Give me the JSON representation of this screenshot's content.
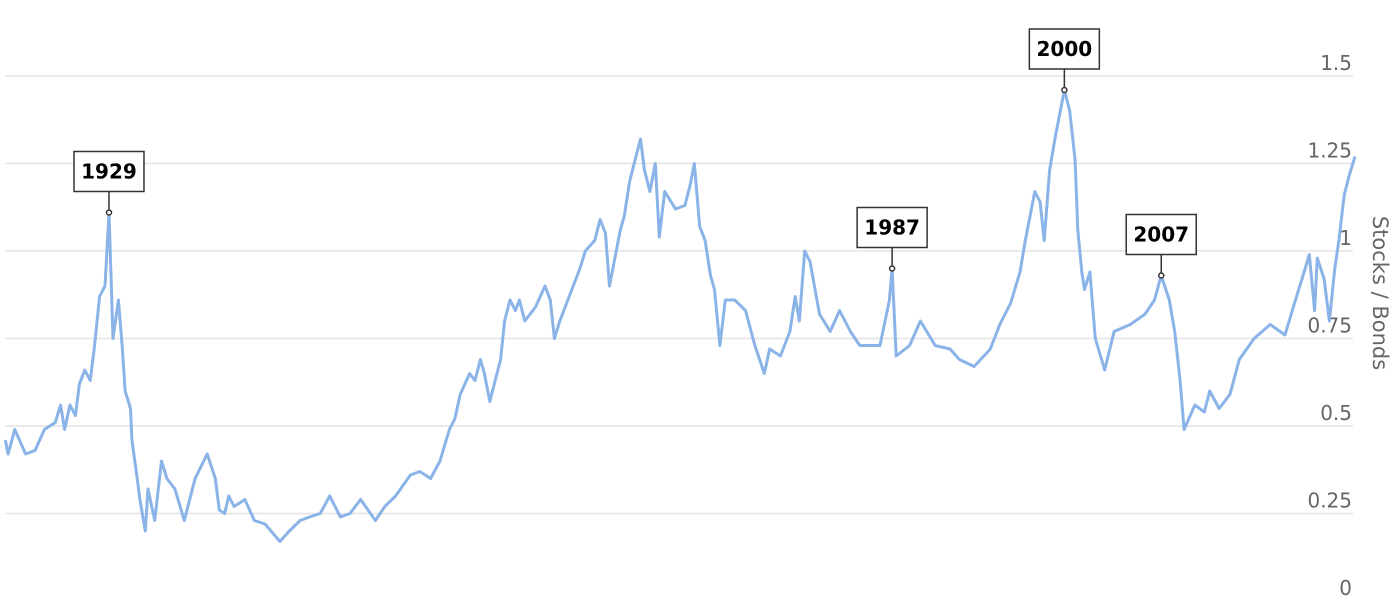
{
  "chart_data": {
    "type": "line",
    "title": "",
    "xlabel": "",
    "ylabel": "Stocks / Bonds",
    "xlim": [
      1920.9,
      2021.6
    ],
    "ylim": [
      0,
      1.5
    ],
    "yticks": [
      0,
      0.25,
      0.5,
      0.75,
      1,
      1.25,
      1.5
    ],
    "ytick_labels": [
      "0",
      "0.25",
      "0.5",
      "0.75",
      "1",
      "1.25",
      "1.5"
    ],
    "y_axis_side": "right",
    "grid": "horizontal",
    "line_color": "#8ab4e8",
    "series": [
      {
        "points": [
          [
            1921.3,
            0.46
          ],
          [
            1921.5,
            0.42
          ],
          [
            1922.0,
            0.49
          ],
          [
            1922.8,
            0.42
          ],
          [
            1923.5,
            0.43
          ],
          [
            1924.2,
            0.49
          ],
          [
            1925.0,
            0.51
          ],
          [
            1925.4,
            0.56
          ],
          [
            1925.7,
            0.49
          ],
          [
            1926.1,
            0.56
          ],
          [
            1926.5,
            0.53
          ],
          [
            1926.8,
            0.62
          ],
          [
            1927.2,
            0.66
          ],
          [
            1927.6,
            0.63
          ],
          [
            1927.9,
            0.72
          ],
          [
            1928.3,
            0.87
          ],
          [
            1928.7,
            0.9
          ],
          [
            1929.0,
            1.11
          ],
          [
            1929.3,
            0.75
          ],
          [
            1929.7,
            0.86
          ],
          [
            1930.0,
            0.72
          ],
          [
            1930.2,
            0.6
          ],
          [
            1930.6,
            0.55
          ],
          [
            1930.7,
            0.46
          ],
          [
            1931.1,
            0.35
          ],
          [
            1931.3,
            0.29
          ],
          [
            1931.7,
            0.2
          ],
          [
            1931.9,
            0.32
          ],
          [
            1932.4,
            0.23
          ],
          [
            1932.9,
            0.4
          ],
          [
            1933.3,
            0.35
          ],
          [
            1933.9,
            0.32
          ],
          [
            1934.6,
            0.23
          ],
          [
            1935.4,
            0.35
          ],
          [
            1936.3,
            0.42
          ],
          [
            1936.9,
            0.35
          ],
          [
            1937.2,
            0.26
          ],
          [
            1937.6,
            0.25
          ],
          [
            1937.9,
            0.3
          ],
          [
            1938.3,
            0.27
          ],
          [
            1939.1,
            0.29
          ],
          [
            1939.8,
            0.23
          ],
          [
            1940.6,
            0.22
          ],
          [
            1941.7,
            0.17
          ],
          [
            1942.4,
            0.2
          ],
          [
            1943.2,
            0.23
          ],
          [
            1943.9,
            0.24
          ],
          [
            1944.7,
            0.25
          ],
          [
            1945.4,
            0.3
          ],
          [
            1946.2,
            0.24
          ],
          [
            1946.9,
            0.25
          ],
          [
            1947.7,
            0.29
          ],
          [
            1948.8,
            0.23
          ],
          [
            1949.5,
            0.27
          ],
          [
            1950.3,
            0.3
          ],
          [
            1951.4,
            0.36
          ],
          [
            1952.1,
            0.37
          ],
          [
            1952.9,
            0.35
          ],
          [
            1953.6,
            0.4
          ],
          [
            1954.3,
            0.49
          ],
          [
            1954.7,
            0.52
          ],
          [
            1955.1,
            0.59
          ],
          [
            1955.8,
            0.65
          ],
          [
            1956.2,
            0.63
          ],
          [
            1956.6,
            0.69
          ],
          [
            1956.9,
            0.65
          ],
          [
            1957.3,
            0.57
          ],
          [
            1958.1,
            0.69
          ],
          [
            1958.4,
            0.8
          ],
          [
            1958.8,
            0.86
          ],
          [
            1959.2,
            0.83
          ],
          [
            1959.5,
            0.86
          ],
          [
            1959.9,
            0.8
          ],
          [
            1960.7,
            0.84
          ],
          [
            1961.4,
            0.9
          ],
          [
            1961.8,
            0.86
          ],
          [
            1962.1,
            0.75
          ],
          [
            1962.5,
            0.8
          ],
          [
            1963.2,
            0.87
          ],
          [
            1964.0,
            0.95
          ],
          [
            1964.4,
            1.0
          ],
          [
            1965.1,
            1.03
          ],
          [
            1965.5,
            1.09
          ],
          [
            1965.9,
            1.05
          ],
          [
            1966.2,
            0.9
          ],
          [
            1967.0,
            1.06
          ],
          [
            1967.3,
            1.1
          ],
          [
            1967.7,
            1.2
          ],
          [
            1968.1,
            1.26
          ],
          [
            1968.5,
            1.32
          ],
          [
            1968.8,
            1.23
          ],
          [
            1969.2,
            1.17
          ],
          [
            1969.6,
            1.25
          ],
          [
            1969.9,
            1.04
          ],
          [
            1970.3,
            1.17
          ],
          [
            1971.1,
            1.12
          ],
          [
            1971.8,
            1.13
          ],
          [
            1972.2,
            1.19
          ],
          [
            1972.5,
            1.25
          ],
          [
            1972.9,
            1.07
          ],
          [
            1973.3,
            1.03
          ],
          [
            1973.7,
            0.93
          ],
          [
            1974.0,
            0.89
          ],
          [
            1974.4,
            0.73
          ],
          [
            1974.8,
            0.86
          ],
          [
            1975.5,
            0.86
          ],
          [
            1976.3,
            0.83
          ],
          [
            1977.0,
            0.73
          ],
          [
            1977.7,
            0.65
          ],
          [
            1978.1,
            0.72
          ],
          [
            1978.9,
            0.7
          ],
          [
            1979.6,
            0.77
          ],
          [
            1980.0,
            0.87
          ],
          [
            1980.3,
            0.8
          ],
          [
            1980.7,
            1.0
          ],
          [
            1981.1,
            0.97
          ],
          [
            1981.8,
            0.82
          ],
          [
            1982.6,
            0.77
          ],
          [
            1983.3,
            0.83
          ],
          [
            1984.1,
            0.77
          ],
          [
            1984.8,
            0.73
          ],
          [
            1985.5,
            0.73
          ],
          [
            1986.3,
            0.73
          ],
          [
            1987.0,
            0.86
          ],
          [
            1987.2,
            0.95
          ],
          [
            1987.5,
            0.7
          ],
          [
            1988.5,
            0.73
          ],
          [
            1989.3,
            0.8
          ],
          [
            1990.4,
            0.73
          ],
          [
            1991.5,
            0.72
          ],
          [
            1992.2,
            0.69
          ],
          [
            1993.3,
            0.67
          ],
          [
            1994.5,
            0.72
          ],
          [
            1995.2,
            0.79
          ],
          [
            1996.0,
            0.85
          ],
          [
            1996.7,
            0.94
          ],
          [
            1997.1,
            1.03
          ],
          [
            1997.8,
            1.17
          ],
          [
            1998.2,
            1.14
          ],
          [
            1998.5,
            1.03
          ],
          [
            1998.9,
            1.23
          ],
          [
            1999.3,
            1.32
          ],
          [
            1999.7,
            1.4
          ],
          [
            2000.0,
            1.46
          ],
          [
            2000.4,
            1.4
          ],
          [
            2000.8,
            1.26
          ],
          [
            2001.0,
            1.06
          ],
          [
            2001.3,
            0.94
          ],
          [
            2001.5,
            0.89
          ],
          [
            2001.9,
            0.94
          ],
          [
            2002.3,
            0.75
          ],
          [
            2003.0,
            0.66
          ],
          [
            2003.7,
            0.77
          ],
          [
            2004.9,
            0.79
          ],
          [
            2006.0,
            0.82
          ],
          [
            2006.7,
            0.86
          ],
          [
            2007.2,
            0.93
          ],
          [
            2007.8,
            0.86
          ],
          [
            2008.2,
            0.77
          ],
          [
            2008.6,
            0.63
          ],
          [
            2008.9,
            0.49
          ],
          [
            2009.7,
            0.56
          ],
          [
            2010.4,
            0.54
          ],
          [
            2010.8,
            0.6
          ],
          [
            2011.5,
            0.55
          ],
          [
            2012.3,
            0.59
          ],
          [
            2013.0,
            0.69
          ],
          [
            2014.1,
            0.75
          ],
          [
            2015.3,
            0.79
          ],
          [
            2016.4,
            0.76
          ],
          [
            2017.1,
            0.85
          ],
          [
            2017.9,
            0.95
          ],
          [
            2018.2,
            0.99
          ],
          [
            2018.6,
            0.83
          ],
          [
            2018.8,
            0.98
          ],
          [
            2019.3,
            0.92
          ],
          [
            2019.7,
            0.8
          ],
          [
            2020.1,
            0.95
          ],
          [
            2020.4,
            1.03
          ],
          [
            2020.8,
            1.16
          ],
          [
            2021.2,
            1.22
          ],
          [
            2021.6,
            1.27
          ]
        ]
      }
    ],
    "annotations": [
      {
        "label": "1929",
        "x": 1929.0,
        "y": 1.11
      },
      {
        "label": "1987",
        "x": 1987.2,
        "y": 0.95
      },
      {
        "label": "2000",
        "x": 2000.0,
        "y": 1.46
      },
      {
        "label": "2007",
        "x": 2007.2,
        "y": 0.93
      }
    ]
  }
}
